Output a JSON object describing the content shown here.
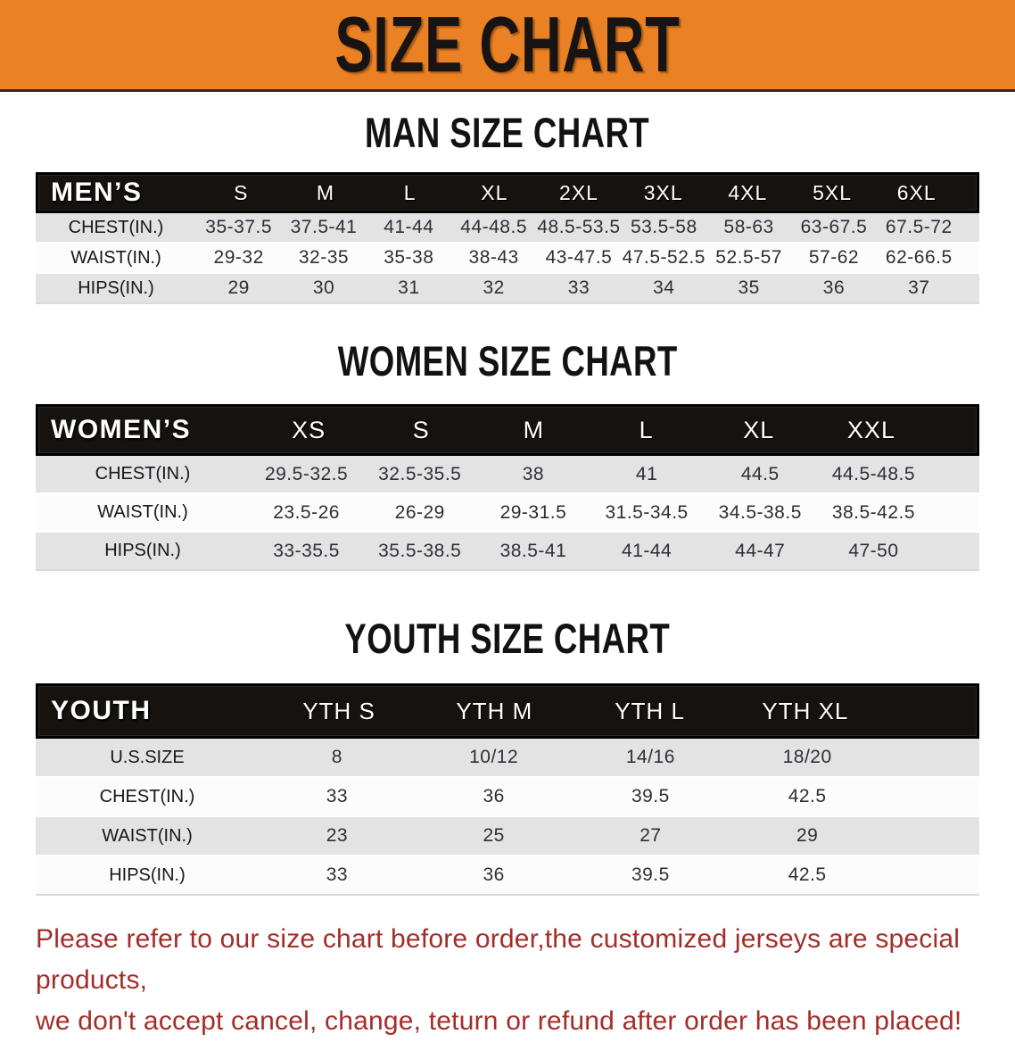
{
  "banner": {
    "title": "SIZE CHART",
    "bg_color": "#EB8125",
    "text_color": "#181414"
  },
  "colors": {
    "header_band": "#16120F",
    "row_stripe_gray": "#E3E3E4",
    "row_stripe_white": "#FCFCFC",
    "disclaimer_red": "#A32E29"
  },
  "sections": [
    {
      "title": "MAN SIZE CHART",
      "table": {
        "header_label": "MEN’S",
        "columns": [
          "S",
          "M",
          "L",
          "XL",
          "2XL",
          "3XL",
          "4XL",
          "5XL",
          "6XL"
        ],
        "rows": [
          {
            "label": "CHEST(IN.)",
            "values": [
              "35-37.5",
              "37.5-41",
              "41-44",
              "44-48.5",
              "48.5-53.5",
              "53.5-58",
              "58-63",
              "63-67.5",
              "67.5-72"
            ]
          },
          {
            "label": "WAIST(IN.)",
            "values": [
              "29-32",
              "32-35",
              "35-38",
              "38-43",
              "43-47.5",
              "47.5-52.5",
              "52.5-57",
              "57-62",
              "62-66.5"
            ]
          },
          {
            "label": "HIPS(IN.)",
            "values": [
              "29",
              "30",
              "31",
              "32",
              "33",
              "34",
              "35",
              "36",
              "37"
            ]
          }
        ]
      }
    },
    {
      "title": "WOMEN SIZE CHART",
      "table": {
        "header_label": "WOMEN’S",
        "columns": [
          "XS",
          "S",
          "M",
          "L",
          "XL",
          "XXL"
        ],
        "rows": [
          {
            "label": "CHEST(IN.)",
            "values": [
              "29.5-32.5",
              "32.5-35.5",
              "38",
              "41",
              "44.5",
              "44.5-48.5"
            ]
          },
          {
            "label": "WAIST(IN.)",
            "values": [
              "23.5-26",
              "26-29",
              "29-31.5",
              "31.5-34.5",
              "34.5-38.5",
              "38.5-42.5"
            ]
          },
          {
            "label": "HIPS(IN.)",
            "values": [
              "33-35.5",
              "35.5-38.5",
              "38.5-41",
              "41-44",
              "44-47",
              "47-50"
            ]
          }
        ]
      }
    },
    {
      "title": "YOUTH SIZE CHART",
      "table": {
        "header_label": "YOUTH",
        "columns": [
          "YTH S",
          "YTH M",
          "YTH L",
          "YTH XL"
        ],
        "rows": [
          {
            "label": "U.S.SIZE",
            "values": [
              "8",
              "10/12",
              "14/16",
              "18/20"
            ]
          },
          {
            "label": "CHEST(IN.)",
            "values": [
              "33",
              "36",
              "39.5",
              "42.5"
            ]
          },
          {
            "label": "WAIST(IN.)",
            "values": [
              "23",
              "25",
              "27",
              "29"
            ]
          },
          {
            "label": "HIPS(IN.)",
            "values": [
              "33",
              "36",
              "39.5",
              "42.5"
            ]
          }
        ]
      }
    }
  ],
  "disclaimer": {
    "lines": [
      "Please refer to our size chart before order,the customized jerseys are special products,",
      "we don't accept cancel, change, teturn or refund after order has been placed!"
    ]
  }
}
